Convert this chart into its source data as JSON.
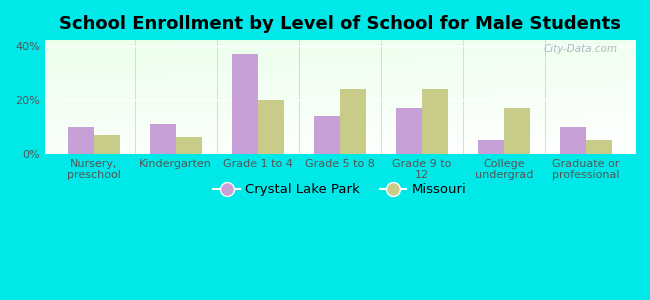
{
  "title": "School Enrollment by Level of School for Male Students",
  "categories": [
    "Nursery,\npreschool",
    "Kindergarten",
    "Grade 1 to 4",
    "Grade 5 to 8",
    "Grade 9 to\n12",
    "College\nundergrad",
    "Graduate or\nprofessional"
  ],
  "crystal_lake_park": [
    10,
    11,
    37,
    14,
    17,
    5,
    10
  ],
  "missouri": [
    7,
    6,
    20,
    24,
    24,
    17,
    5
  ],
  "clp_color": "#c8a0d8",
  "mo_color": "#c8cc88",
  "background_outer": "#00e8e8",
  "ylim": [
    0,
    42
  ],
  "yticks": [
    0,
    20,
    40
  ],
  "ytick_labels": [
    "0%",
    "20%",
    "40%"
  ],
  "legend_clp": "Crystal Lake Park",
  "legend_mo": "Missouri",
  "title_fontsize": 13,
  "tick_fontsize": 8,
  "legend_fontsize": 9.5,
  "bar_width": 0.32,
  "watermark": "City-Data.com"
}
